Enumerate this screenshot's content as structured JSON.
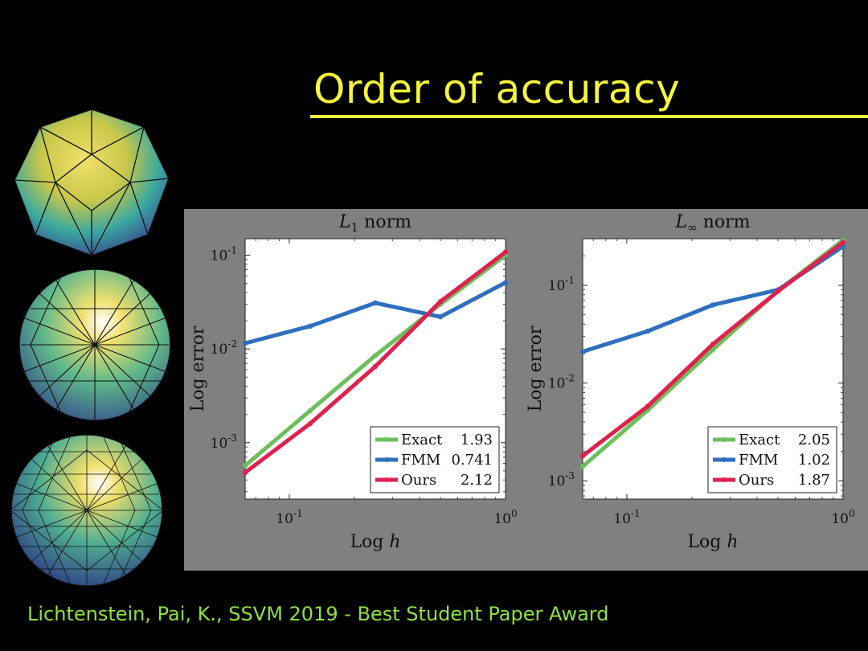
{
  "slide": {
    "title": "Order of accuracy",
    "citation": "Lichtenstein, Pai, K.,  SSVM 2019 - Best Student Paper Award"
  },
  "colors": {
    "title": "#f5f53a",
    "citation": "#8fe33a",
    "panel": "#808080",
    "exact": "#6cbf5c",
    "fmm": "#2f6fbd",
    "ours": "#e0214f"
  },
  "chart_data": [
    {
      "type": "line",
      "title": "L1 norm",
      "title_main": "L",
      "title_sub": "1",
      "title_rest": " norm",
      "xlabel": "Log ",
      "xlabel_var": "h",
      "ylabel": "Log error",
      "xscale": "log",
      "yscale": "log",
      "xlim": [
        0.0625,
        1.0
      ],
      "ylim": [
        0.00025,
        0.15
      ],
      "x_ticks": [
        {
          "value": 0.1,
          "base": "10",
          "exp": "-1"
        },
        {
          "value": 1.0,
          "base": "10",
          "exp": "0"
        }
      ],
      "y_ticks": [
        {
          "value": 0.001,
          "base": "10",
          "exp": "-3"
        },
        {
          "value": 0.01,
          "base": "10",
          "exp": "-2"
        },
        {
          "value": 0.1,
          "base": "10",
          "exp": "-1"
        }
      ],
      "legend_position": "bottom-right",
      "series": [
        {
          "name": "Exact",
          "rate": "1.93",
          "color": "#6cbf5c",
          "x": [
            0.0625,
            0.125,
            0.25,
            0.5,
            1.0
          ],
          "y": [
            0.00057,
            0.0022,
            0.0085,
            0.03,
            0.1
          ]
        },
        {
          "name": "FMM",
          "rate": "0.741",
          "color": "#2f6fbd",
          "x": [
            0.0625,
            0.125,
            0.25,
            0.5,
            1.0
          ],
          "y": [
            0.0115,
            0.0175,
            0.031,
            0.022,
            0.051
          ]
        },
        {
          "name": "Ours",
          "rate": "2.12",
          "color": "#e0214f",
          "x": [
            0.0625,
            0.125,
            0.25,
            0.5,
            1.0
          ],
          "y": [
            0.00048,
            0.0016,
            0.0065,
            0.032,
            0.108
          ]
        }
      ]
    },
    {
      "type": "line",
      "title": "L∞ norm",
      "title_main": "L",
      "title_sub": "∞",
      "title_rest": " norm",
      "xlabel": "Log ",
      "xlabel_var": "h",
      "ylabel": "Log error",
      "xscale": "log",
      "yscale": "log",
      "xlim": [
        0.0625,
        1.0
      ],
      "ylim": [
        0.00065,
        0.3
      ],
      "x_ticks": [
        {
          "value": 0.1,
          "base": "10",
          "exp": "-1"
        },
        {
          "value": 1.0,
          "base": "10",
          "exp": "0"
        }
      ],
      "y_ticks": [
        {
          "value": 0.001,
          "base": "10",
          "exp": "-3"
        },
        {
          "value": 0.01,
          "base": "10",
          "exp": "-2"
        },
        {
          "value": 0.1,
          "base": "10",
          "exp": "-1"
        }
      ],
      "legend_position": "bottom-right",
      "series": [
        {
          "name": "Exact",
          "rate": "2.05",
          "color": "#6cbf5c",
          "x": [
            0.0625,
            0.125,
            0.25,
            0.5,
            1.0
          ],
          "y": [
            0.0014,
            0.0053,
            0.022,
            0.088,
            0.29
          ]
        },
        {
          "name": "FMM",
          "rate": "1.02",
          "color": "#2f6fbd",
          "x": [
            0.0625,
            0.125,
            0.25,
            0.5,
            1.0
          ],
          "y": [
            0.021,
            0.034,
            0.063,
            0.09,
            0.25
          ]
        },
        {
          "name": "Ours",
          "rate": "1.87",
          "color": "#e0214f",
          "x": [
            0.0625,
            0.125,
            0.25,
            0.5,
            1.0
          ],
          "y": [
            0.0018,
            0.0058,
            0.025,
            0.087,
            0.275
          ]
        }
      ]
    }
  ]
}
